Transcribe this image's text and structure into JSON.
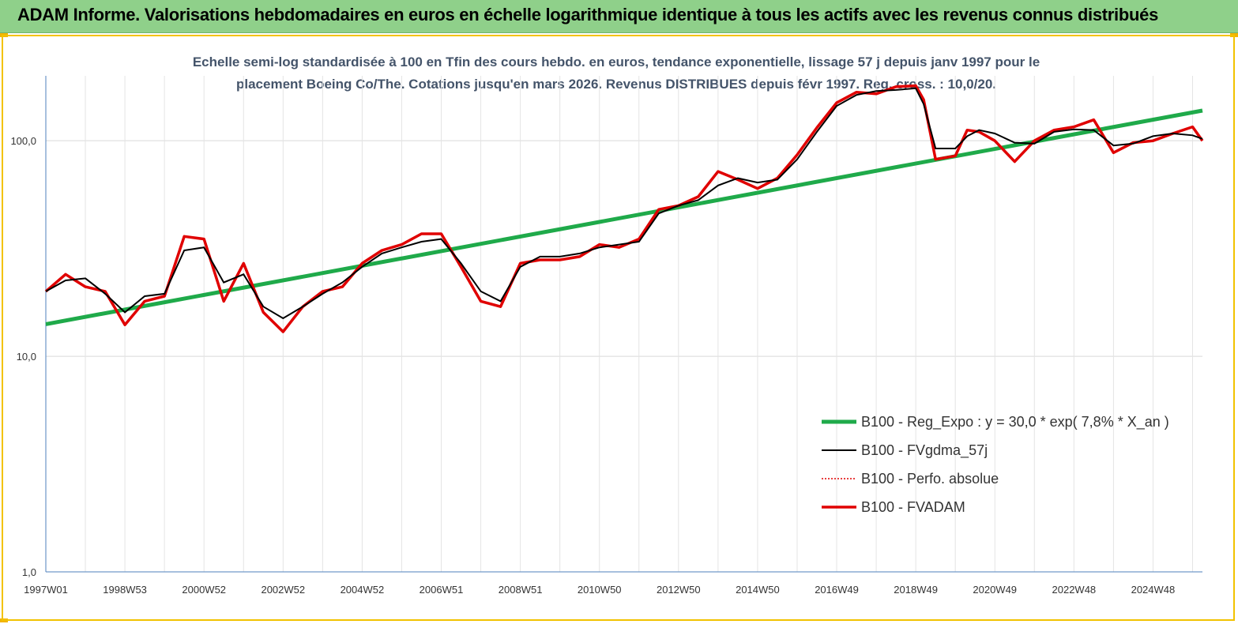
{
  "banner": {
    "title": "ADAM Informe. Valorisations hebdomadaires en euros en échelle logarithmique identique à tous les actifs avec les revenus connus distribués"
  },
  "colors": {
    "banner_bg": "#8fd08a",
    "accent": "#f2c200",
    "regression": "#1faa4a",
    "smoothed": "#000000",
    "absolute": "#e00000",
    "fvadam": "#e00000",
    "subtitle": "#44546a"
  },
  "chart_data": {
    "type": "line",
    "subtitle_line1": "Echelle semi-log standardisée à 100 en Tfin des cours hebdo. en euros, tendance exponentielle, lissage 57 j depuis janv 1997 pour le",
    "subtitle_line2": "placement Boeing Co/The. Cotations jusqu'en mars 2026. Revenus DISTRIBUES depuis févr 1997. Reg. cross. : 10,0/20.",
    "y_scale": "log",
    "ylim": [
      1,
      200
    ],
    "y_ticks": [
      "1,0",
      "10,0",
      "100,0"
    ],
    "xlim": [
      1997.0,
      2026.25
    ],
    "x_tick_labels": [
      "1997W01",
      "1998W53",
      "2000W52",
      "2002W52",
      "2004W52",
      "2006W51",
      "2008W51",
      "2010W50",
      "2012W50",
      "2014W50",
      "2016W49",
      "2018W49",
      "2020W49",
      "2022W48",
      "2024W48"
    ],
    "grid": "vertical",
    "legend_position": "bottom-right",
    "series": [
      {
        "name": "B100 - Reg_Expo : y = 30,0 * exp( 7,8% * X_an )",
        "style": "thick-green",
        "x": [
          1997.0,
          2026.25
        ],
        "values": [
          14.1,
          138
        ]
      },
      {
        "name": "B100 - FVgdma_57j",
        "style": "thin-black",
        "x": [
          1997.0,
          1997.5,
          1998.0,
          1998.5,
          1999.0,
          1999.5,
          2000.0,
          2000.5,
          2001.0,
          2001.5,
          2002.0,
          2002.5,
          2003.0,
          2003.5,
          2004.0,
          2004.5,
          2005.0,
          2005.5,
          2006.0,
          2006.5,
          2007.0,
          2007.5,
          2008.0,
          2008.5,
          2009.0,
          2009.5,
          2010.0,
          2010.5,
          2011.0,
          2011.5,
          2012.0,
          2012.5,
          2013.0,
          2013.5,
          2014.0,
          2014.5,
          2015.0,
          2015.5,
          2016.0,
          2016.5,
          2017.0,
          2017.5,
          2018.0,
          2018.5,
          2019.0,
          2019.2,
          2019.5,
          2020.0,
          2020.3,
          2020.6,
          2021.0,
          2021.5,
          2022.0,
          2022.5,
          2023.0,
          2023.5,
          2024.0,
          2024.5,
          2025.0,
          2025.5,
          2026.0,
          2026.25
        ],
        "values": [
          20,
          22.5,
          23,
          19.5,
          16,
          19,
          19.5,
          31,
          32,
          22,
          24,
          17,
          15,
          17,
          19.5,
          22,
          26,
          30,
          32,
          34,
          35,
          27,
          20,
          18,
          26,
          29,
          29,
          30,
          32,
          33,
          34,
          46,
          50,
          53,
          62,
          67,
          64,
          66,
          82,
          110,
          145,
          163,
          170,
          172,
          175,
          148,
          92,
          92,
          105,
          112,
          108,
          98,
          97,
          110,
          113,
          112,
          95,
          97,
          105,
          108,
          106,
          102
        ]
      },
      {
        "name": "B100 - Perfo. absolue",
        "style": "dotted-red",
        "x": [],
        "values": []
      },
      {
        "name": "B100 - FVADAM",
        "style": "thick-red",
        "x": [
          1997.0,
          1997.5,
          1998.0,
          1998.5,
          1999.0,
          1999.5,
          2000.0,
          2000.5,
          2001.0,
          2001.5,
          2002.0,
          2002.5,
          2003.0,
          2003.5,
          2004.0,
          2004.5,
          2005.0,
          2005.5,
          2006.0,
          2006.5,
          2007.0,
          2007.5,
          2008.0,
          2008.5,
          2009.0,
          2009.5,
          2010.0,
          2010.5,
          2011.0,
          2011.5,
          2012.0,
          2012.5,
          2013.0,
          2013.5,
          2014.0,
          2014.5,
          2015.0,
          2015.5,
          2016.0,
          2016.5,
          2017.0,
          2017.5,
          2018.0,
          2018.5,
          2019.0,
          2019.2,
          2019.5,
          2020.0,
          2020.3,
          2020.6,
          2021.0,
          2021.5,
          2022.0,
          2022.5,
          2023.0,
          2023.5,
          2024.0,
          2024.5,
          2025.0,
          2025.5,
          2026.0,
          2026.25
        ],
        "values": [
          20,
          24,
          21,
          20,
          14,
          18,
          19,
          36,
          35,
          18,
          27,
          16,
          13,
          17,
          20,
          21,
          27,
          31,
          33,
          37,
          37,
          26,
          18,
          17,
          27,
          28,
          28,
          29,
          33,
          32,
          35,
          48,
          50,
          55,
          72,
          66,
          60,
          67,
          86,
          115,
          150,
          168,
          165,
          178,
          180,
          155,
          82,
          85,
          112,
          110,
          100,
          80,
          100,
          112,
          116,
          125,
          88,
          98,
          100,
          108,
          116,
          100
        ]
      }
    ]
  }
}
